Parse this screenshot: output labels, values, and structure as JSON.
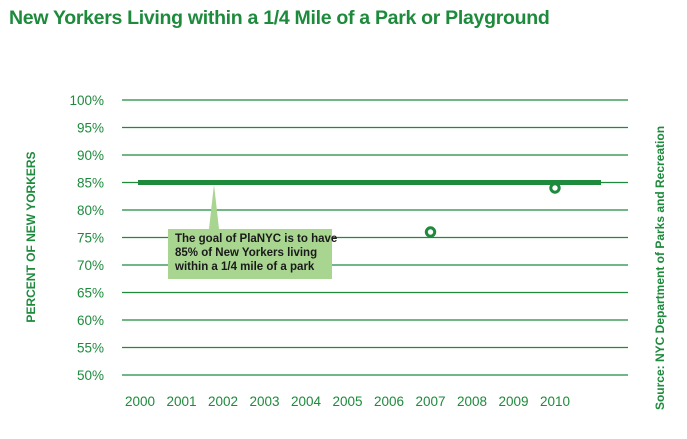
{
  "title": "New Yorkers Living within a 1/4 Mile of a Park or Playground",
  "source": "Source: NYC Department of Parks and Recreation",
  "colors": {
    "green": "#1d8a3c",
    "annotation_fill": "#a8d590"
  },
  "chart_data": {
    "type": "scatter",
    "title": "New Yorkers Living within a 1/4 Mile of a Park or Playground",
    "xlabel": "",
    "ylabel": "PERCENT OF NEW YORKERS",
    "x": [
      2007,
      2010
    ],
    "values": [
      76,
      84
    ],
    "x_ticks": [
      "2000",
      "2001",
      "2002",
      "2003",
      "2004",
      "2005",
      "2006",
      "2007",
      "2008",
      "2009",
      "2010"
    ],
    "y_ticks": [
      "50%",
      "55%",
      "60%",
      "65%",
      "70%",
      "75%",
      "80%",
      "85%",
      "90%",
      "95%",
      "100%"
    ],
    "ylim": [
      50,
      100
    ],
    "grid": true,
    "target": {
      "value": 85,
      "label_lines": [
        "The goal of PlaNYC is to have",
        "85% of New Yorkers living",
        "within a 1/4 mile of a park"
      ]
    }
  }
}
